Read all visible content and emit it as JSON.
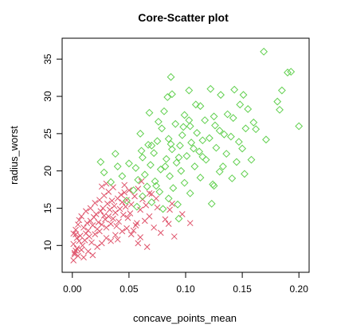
{
  "chart_data": {
    "type": "scatter",
    "title": "Core-Scatter plot",
    "xlabel": "concave_points_mean",
    "ylabel": "radius_worst",
    "xlim": [
      -0.009,
      0.209
    ],
    "ylim": [
      6.4,
      37.8
    ],
    "xticks": [
      0.0,
      0.05,
      0.1,
      0.15,
      0.2
    ],
    "xtick_labels": [
      "0.00",
      "0.05",
      "0.10",
      "0.15",
      "0.20"
    ],
    "yticks": [
      10,
      15,
      20,
      25,
      30,
      35
    ],
    "ytick_labels": [
      "10",
      "15",
      "20",
      "25",
      "30",
      "35"
    ],
    "grid": false,
    "series": [
      {
        "marker": "x",
        "color": "#DF536B",
        "points": [
          [
            0.001,
            8.0
          ],
          [
            0.002,
            8.8
          ],
          [
            0.003,
            9.3
          ],
          [
            0.004,
            9.6
          ],
          [
            0.001,
            10.2
          ],
          [
            0.006,
            10.6
          ],
          [
            0.004,
            11.0
          ],
          [
            0.003,
            11.5
          ],
          [
            0.008,
            9.4
          ],
          [
            0.009,
            10.0
          ],
          [
            0.011,
            10.7
          ],
          [
            0.007,
            11.3
          ],
          [
            0.012,
            11.6
          ],
          [
            0.014,
            12.0
          ],
          [
            0.01,
            12.4
          ],
          [
            0.005,
            12.8
          ],
          [
            0.013,
            13.0
          ],
          [
            0.016,
            13.3
          ],
          [
            0.018,
            12.7
          ],
          [
            0.015,
            11.2
          ],
          [
            0.017,
            10.4
          ],
          [
            0.02,
            11.5
          ],
          [
            0.019,
            13.8
          ],
          [
            0.022,
            12.2
          ],
          [
            0.021,
            14.2
          ],
          [
            0.023,
            13.1
          ],
          [
            0.025,
            14.6
          ],
          [
            0.024,
            11.9
          ],
          [
            0.026,
            12.8
          ],
          [
            0.027,
            15.0
          ],
          [
            0.029,
            13.5
          ],
          [
            0.028,
            14.0
          ],
          [
            0.03,
            12.4
          ],
          [
            0.031,
            15.6
          ],
          [
            0.032,
            13.9
          ],
          [
            0.033,
            14.8
          ],
          [
            0.034,
            12.9
          ],
          [
            0.035,
            16.0
          ],
          [
            0.036,
            13.6
          ],
          [
            0.038,
            14.4
          ],
          [
            0.037,
            15.3
          ],
          [
            0.04,
            16.3
          ],
          [
            0.039,
            12.6
          ],
          [
            0.042,
            14.9
          ],
          [
            0.041,
            13.2
          ],
          [
            0.044,
            15.8
          ],
          [
            0.043,
            16.8
          ],
          [
            0.045,
            14.1
          ],
          [
            0.047,
            15.2
          ],
          [
            0.046,
            17.1
          ],
          [
            0.049,
            13.7
          ],
          [
            0.048,
            16.1
          ],
          [
            0.052,
            15.5
          ],
          [
            0.051,
            14.3
          ],
          [
            0.055,
            16.6
          ],
          [
            0.054,
            12.0
          ],
          [
            0.057,
            13.0
          ],
          [
            0.058,
            17.6
          ],
          [
            0.06,
            14.8
          ],
          [
            0.062,
            16.2
          ],
          [
            0.065,
            15.4
          ],
          [
            0.068,
            13.9
          ],
          [
            0.07,
            16.9
          ],
          [
            0.072,
            12.4
          ],
          [
            0.075,
            15.1
          ],
          [
            0.078,
            11.7
          ],
          [
            0.082,
            13.5
          ],
          [
            0.085,
            12.9
          ],
          [
            0.088,
            15.6
          ],
          [
            0.09,
            11.2
          ],
          [
            0.022,
            9.8
          ],
          [
            0.026,
            10.3
          ],
          [
            0.03,
            11.0
          ],
          [
            0.034,
            10.6
          ],
          [
            0.038,
            11.4
          ],
          [
            0.018,
            8.7
          ],
          [
            0.014,
            9.2
          ],
          [
            0.01,
            8.4
          ],
          [
            0.002,
            9.0
          ],
          [
            0.005,
            8.6
          ],
          [
            0.024,
            16.1
          ],
          [
            0.028,
            16.7
          ],
          [
            0.032,
            17.2
          ],
          [
            0.02,
            15.7
          ],
          [
            0.016,
            15.0
          ],
          [
            0.012,
            14.6
          ],
          [
            0.008,
            13.9
          ],
          [
            0.006,
            13.4
          ],
          [
            0.003,
            12.1
          ],
          [
            0.001,
            11.6
          ],
          [
            0.044,
            11.9
          ],
          [
            0.048,
            12.3
          ],
          [
            0.052,
            11.5
          ],
          [
            0.056,
            12.7
          ],
          [
            0.06,
            11.1
          ],
          [
            0.064,
            13.3
          ],
          [
            0.04,
            10.8
          ],
          [
            0.036,
            17.8
          ],
          [
            0.046,
            18.1
          ],
          [
            0.05,
            17.4
          ],
          [
            0.03,
            18.3
          ],
          [
            0.026,
            17.9
          ],
          [
            0.061,
            18.6
          ],
          [
            0.068,
            17.0
          ],
          [
            0.074,
            16.3
          ],
          [
            0.086,
            14.8
          ],
          [
            0.097,
            14.2
          ],
          [
            0.104,
            13.0
          ],
          [
            0.058,
            10.3
          ],
          [
            0.066,
            9.8
          ]
        ]
      },
      {
        "marker": "diamond",
        "color": "#61D04F",
        "points": [
          [
            0.169,
            36.0
          ],
          [
            0.19,
            33.2
          ],
          [
            0.193,
            33.3
          ],
          [
            0.087,
            32.6
          ],
          [
            0.185,
            30.8
          ],
          [
            0.103,
            30.8
          ],
          [
            0.122,
            31.0
          ],
          [
            0.143,
            30.9
          ],
          [
            0.088,
            30.3
          ],
          [
            0.131,
            30.2
          ],
          [
            0.151,
            30.2
          ],
          [
            0.084,
            29.9
          ],
          [
            0.181,
            29.3
          ],
          [
            0.148,
            28.9
          ],
          [
            0.113,
            28.7
          ],
          [
            0.183,
            28.2
          ],
          [
            0.155,
            28.3
          ],
          [
            0.068,
            27.8
          ],
          [
            0.099,
            27.5
          ],
          [
            0.125,
            27.3
          ],
          [
            0.137,
            27.6
          ],
          [
            0.142,
            27.1
          ],
          [
            0.117,
            26.8
          ],
          [
            0.16,
            26.5
          ],
          [
            0.091,
            26.3
          ],
          [
            0.104,
            26.0
          ],
          [
            0.2,
            26.0
          ],
          [
            0.079,
            25.7
          ],
          [
            0.153,
            25.7
          ],
          [
            0.13,
            25.4
          ],
          [
            0.162,
            25.6
          ],
          [
            0.11,
            25.1
          ],
          [
            0.097,
            24.8
          ],
          [
            0.14,
            24.6
          ],
          [
            0.085,
            24.3
          ],
          [
            0.121,
            24.4
          ],
          [
            0.075,
            24.0
          ],
          [
            0.105,
            23.8
          ],
          [
            0.147,
            23.9
          ],
          [
            0.067,
            23.5
          ],
          [
            0.095,
            23.4
          ],
          [
            0.127,
            23.1
          ],
          [
            0.088,
            22.9
          ],
          [
            0.112,
            22.6
          ],
          [
            0.072,
            22.4
          ],
          [
            0.136,
            22.3
          ],
          [
            0.101,
            22.0
          ],
          [
            0.062,
            21.8
          ],
          [
            0.083,
            21.6
          ],
          [
            0.118,
            21.5
          ],
          [
            0.145,
            21.2
          ],
          [
            0.092,
            21.1
          ],
          [
            0.069,
            20.8
          ],
          [
            0.108,
            20.6
          ],
          [
            0.056,
            20.4
          ],
          [
            0.078,
            20.2
          ],
          [
            0.096,
            20.0
          ],
          [
            0.13,
            19.9
          ],
          [
            0.152,
            19.6
          ],
          [
            0.064,
            19.5
          ],
          [
            0.086,
            19.3
          ],
          [
            0.113,
            19.1
          ],
          [
            0.058,
            18.8
          ],
          [
            0.073,
            18.6
          ],
          [
            0.099,
            18.4
          ],
          [
            0.124,
            18.2
          ],
          [
            0.066,
            17.9
          ],
          [
            0.089,
            17.7
          ],
          [
            0.054,
            17.4
          ],
          [
            0.077,
            17.2
          ],
          [
            0.104,
            17.0
          ],
          [
            0.062,
            16.6
          ],
          [
            0.085,
            16.3
          ],
          [
            0.048,
            16.0
          ],
          [
            0.07,
            15.8
          ],
          [
            0.093,
            15.5
          ],
          [
            0.057,
            15.2
          ],
          [
            0.08,
            14.9
          ],
          [
            0.123,
            15.6
          ],
          [
            0.125,
            18.0
          ],
          [
            0.094,
            13.6
          ],
          [
            0.07,
            23.4
          ],
          [
            0.06,
            25.0
          ],
          [
            0.05,
            21.0
          ],
          [
            0.044,
            19.3
          ],
          [
            0.04,
            20.6
          ],
          [
            0.034,
            18.5
          ],
          [
            0.028,
            19.8
          ],
          [
            0.025,
            21.2
          ],
          [
            0.038,
            22.3
          ],
          [
            0.076,
            26.6
          ],
          [
            0.098,
            25.9
          ],
          [
            0.115,
            24.1
          ],
          [
            0.133,
            20.6
          ],
          [
            0.141,
            19.0
          ],
          [
            0.158,
            21.5
          ],
          [
            0.171,
            24.2
          ],
          [
            0.134,
            24.9
          ],
          [
            0.126,
            26.1
          ],
          [
            0.109,
            28.9
          ],
          [
            0.081,
            28.0
          ],
          [
            0.082,
            20.6
          ],
          [
            0.074,
            18.0
          ],
          [
            0.061,
            22.7
          ],
          [
            0.115,
            21.9
          ],
          [
            0.107,
            23.0
          ],
          [
            0.094,
            21.8
          ],
          [
            0.087,
            23.6
          ],
          [
            0.103,
            26.8
          ],
          [
            0.15,
            23.0
          ]
        ]
      }
    ]
  }
}
